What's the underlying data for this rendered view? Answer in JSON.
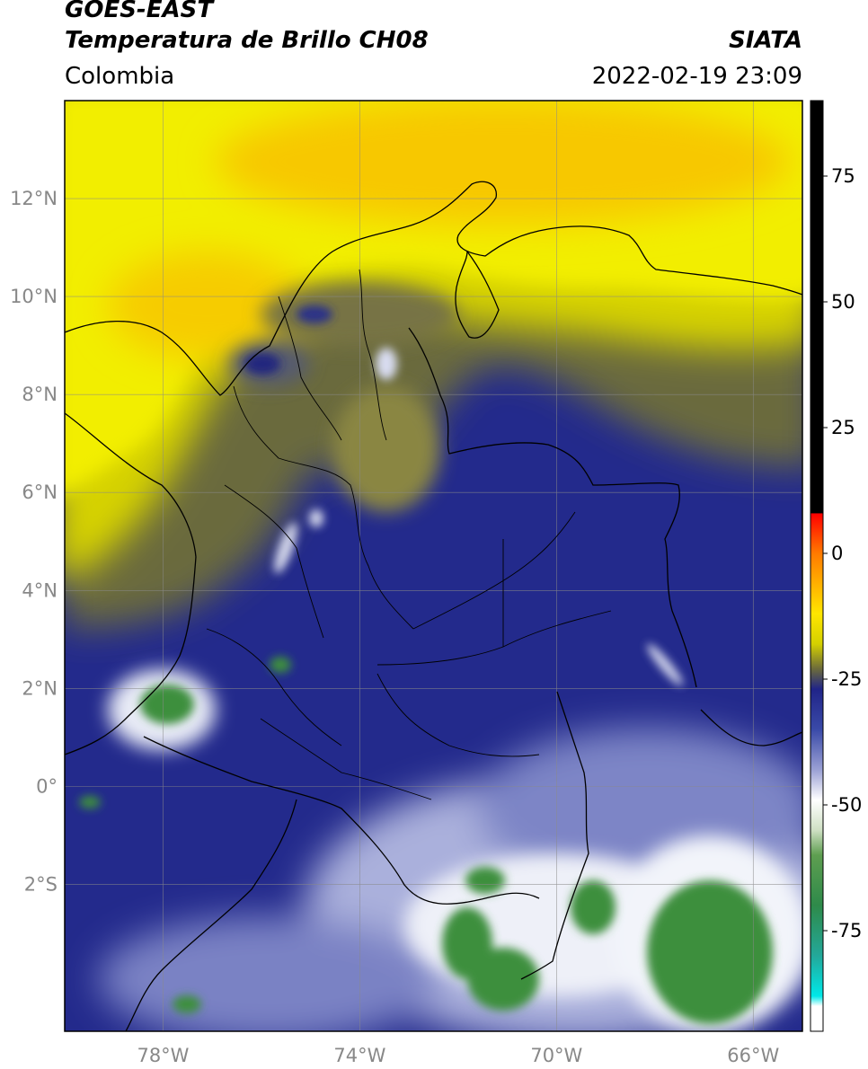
{
  "header": {
    "satellite": "GOES-EAST",
    "product": "Temperatura de Brillo CH08",
    "region": "Colombia",
    "source": "SIATA",
    "datetime": "2022-02-19 23:09"
  },
  "map": {
    "lon_range": [
      -80.0,
      -65.0
    ],
    "lat_range": [
      -5.0,
      14.0
    ],
    "lat_ticks": [
      {
        "value": 12,
        "label": "12°N"
      },
      {
        "value": 10,
        "label": "10°N"
      },
      {
        "value": 8,
        "label": "8°N"
      },
      {
        "value": 6,
        "label": "6°N"
      },
      {
        "value": 4,
        "label": "4°N"
      },
      {
        "value": 2,
        "label": "2°N"
      },
      {
        "value": 0,
        "label": "0°"
      },
      {
        "value": -2,
        "label": "2°S"
      }
    ],
    "lon_ticks": [
      {
        "value": -78,
        "label": "78°W"
      },
      {
        "value": -74,
        "label": "74°W"
      },
      {
        "value": -70,
        "label": "70°W"
      },
      {
        "value": -66,
        "label": "66°W"
      }
    ],
    "grid": true,
    "colors": {
      "warm": "#f2ee00",
      "warmest": "#f7c400",
      "transition": "#6b6a3c",
      "cold": "#1e2288",
      "very_cold": "#e8eaf6",
      "coldest": "#3e8f3e",
      "border": "#000000"
    }
  },
  "colorbar": {
    "range": [
      -95,
      90
    ],
    "ticks": [
      {
        "value": 75,
        "label": "75"
      },
      {
        "value": 50,
        "label": "50"
      },
      {
        "value": 25,
        "label": "25"
      },
      {
        "value": 0,
        "label": "0"
      },
      {
        "value": -25,
        "label": "-25"
      },
      {
        "value": -50,
        "label": "-50"
      },
      {
        "value": -75,
        "label": "-75"
      }
    ],
    "stops": [
      {
        "value": 90,
        "color": "#000000"
      },
      {
        "value": 8,
        "color": "#000000"
      },
      {
        "value": 7.9,
        "color": "#ff0000"
      },
      {
        "value": 0,
        "color": "#ff7a00"
      },
      {
        "value": -12,
        "color": "#ffe600"
      },
      {
        "value": -18,
        "color": "#d4d000"
      },
      {
        "value": -23,
        "color": "#6b6a3c"
      },
      {
        "value": -27,
        "color": "#202488"
      },
      {
        "value": -35,
        "color": "#3a4aa8"
      },
      {
        "value": -43,
        "color": "#9aa0d4"
      },
      {
        "value": -49,
        "color": "#ffffff"
      },
      {
        "value": -55,
        "color": "#cfe0c4"
      },
      {
        "value": -60,
        "color": "#5e9e50"
      },
      {
        "value": -70,
        "color": "#2e8a4a"
      },
      {
        "value": -80,
        "color": "#23a89a"
      },
      {
        "value": -88,
        "color": "#00e8e8"
      },
      {
        "value": -90,
        "color": "#ffffff"
      },
      {
        "value": -95,
        "color": "#ffffff"
      }
    ]
  }
}
